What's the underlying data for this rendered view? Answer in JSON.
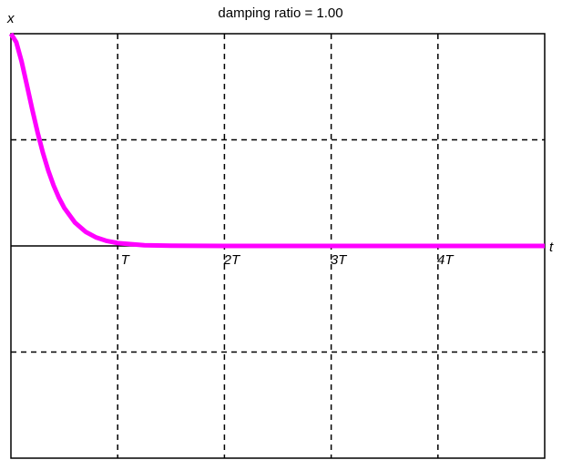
{
  "chart_data": {
    "type": "line",
    "title": "damping ratio = 1.00",
    "y_label": "x",
    "x_label": "t",
    "x": [
      0,
      0.05,
      0.1,
      0.15,
      0.2,
      0.25,
      0.3,
      0.35,
      0.4,
      0.45,
      0.5,
      0.6,
      0.7,
      0.8,
      0.9,
      1.0,
      1.25,
      1.5,
      2,
      3,
      4,
      5
    ],
    "series": [
      {
        "color": "#ff00ff",
        "values": [
          1,
          0.9599,
          0.8687,
          0.7569,
          0.6423,
          0.5344,
          0.438,
          0.3548,
          0.2846,
          0.2265,
          0.179,
          0.11,
          0.0663,
          0.0395,
          0.0233,
          0.0136,
          0.0034,
          0.0008,
          0,
          0,
          0,
          0
        ]
      }
    ],
    "xlim": [
      0,
      5
    ],
    "ylim": [
      -1,
      1
    ],
    "xticks": [
      {
        "value": 1,
        "label": "T"
      },
      {
        "value": 2,
        "label": "2T"
      },
      {
        "value": 3,
        "label": "3T"
      },
      {
        "value": 4,
        "label": "4T"
      }
    ],
    "yticks": [
      -0.5,
      0.5
    ],
    "grid": true
  }
}
